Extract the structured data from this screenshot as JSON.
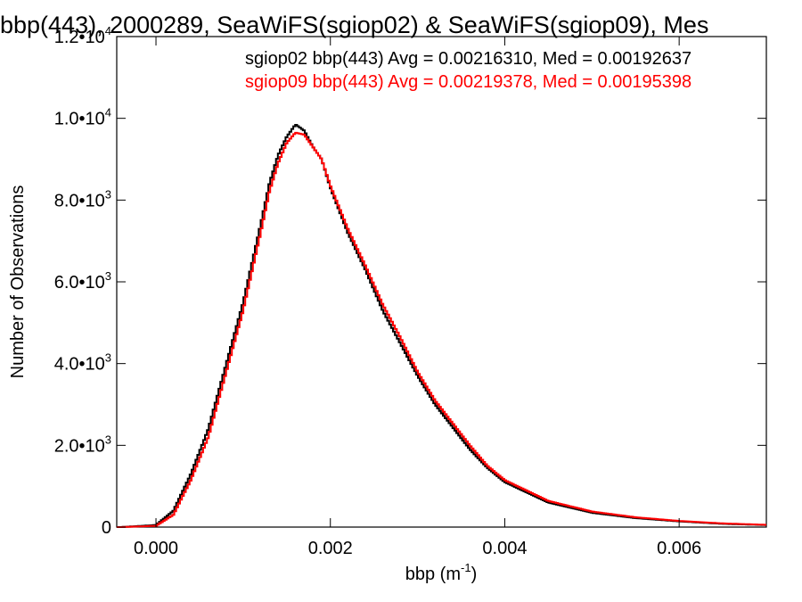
{
  "chart_data": {
    "type": "line",
    "title": "bbp(443), 2000289, SeaWiFS(sgiop02) & SeaWiFS(sgiop09), Mes",
    "xlabel": "bbp (m",
    "xlabel_sup": "-1",
    "xlabel_close": ")",
    "ylabel": "Number of Observations",
    "xlim": [
      -0.00045,
      0.007
    ],
    "ylim": [
      0,
      12000
    ],
    "grid": false,
    "legend_position": "top-right",
    "x_ticks": [
      {
        "value": 0.0,
        "label": "0.000"
      },
      {
        "value": 0.002,
        "label": "0.002"
      },
      {
        "value": 0.004,
        "label": "0.004"
      },
      {
        "value": 0.006,
        "label": "0.006"
      }
    ],
    "y_ticks": [
      {
        "value": 0,
        "base": "0",
        "exp": ""
      },
      {
        "value": 2000,
        "base": "2.0•10",
        "exp": "3"
      },
      {
        "value": 4000,
        "base": "4.0•10",
        "exp": "3"
      },
      {
        "value": 6000,
        "base": "6.0•10",
        "exp": "3"
      },
      {
        "value": 8000,
        "base": "8.0•10",
        "exp": "3"
      },
      {
        "value": 10000,
        "base": "1.0•10",
        "exp": "4"
      },
      {
        "value": 12000,
        "base": "1.2•10",
        "exp": "4"
      }
    ],
    "series": [
      {
        "name": "sgiop02 bbp(443) Avg = 0.00216310, Med = 0.00192637",
        "color": "#000000",
        "x": [
          -0.0004,
          0.0,
          0.0002,
          0.0004,
          0.0006,
          0.0008,
          0.001,
          0.0012,
          0.0013,
          0.0014,
          0.0015,
          0.0016,
          0.0017,
          0.0018,
          0.0019,
          0.002,
          0.0022,
          0.0024,
          0.0026,
          0.0028,
          0.003,
          0.0032,
          0.0034,
          0.0036,
          0.0038,
          0.004,
          0.0045,
          0.005,
          0.0055,
          0.006,
          0.0065,
          0.007
        ],
        "y": [
          0,
          50,
          400,
          1300,
          2400,
          3950,
          5500,
          7400,
          8400,
          9100,
          9550,
          9850,
          9700,
          9300,
          9000,
          8300,
          7200,
          6300,
          5300,
          4500,
          3700,
          3000,
          2450,
          1900,
          1450,
          1100,
          600,
          350,
          220,
          140,
          80,
          50
        ]
      },
      {
        "name": "sgiop09 bbp(443) Avg = 0.00219378, Med = 0.00195398",
        "color": "#ff0000",
        "x": [
          -0.0004,
          0.0,
          0.0002,
          0.0004,
          0.0006,
          0.0008,
          0.001,
          0.0012,
          0.0013,
          0.0014,
          0.0015,
          0.0016,
          0.0017,
          0.0018,
          0.0019,
          0.002,
          0.0022,
          0.0024,
          0.0026,
          0.0028,
          0.003,
          0.0032,
          0.0034,
          0.0036,
          0.0038,
          0.004,
          0.0045,
          0.005,
          0.0055,
          0.006,
          0.0065,
          0.007
        ],
        "y": [
          0,
          30,
          300,
          1150,
          2200,
          3750,
          5300,
          7200,
          8200,
          8900,
          9400,
          9650,
          9600,
          9300,
          9000,
          8350,
          7300,
          6400,
          5450,
          4650,
          3800,
          3100,
          2550,
          2000,
          1500,
          1150,
          640,
          380,
          240,
          150,
          90,
          55
        ]
      }
    ]
  }
}
